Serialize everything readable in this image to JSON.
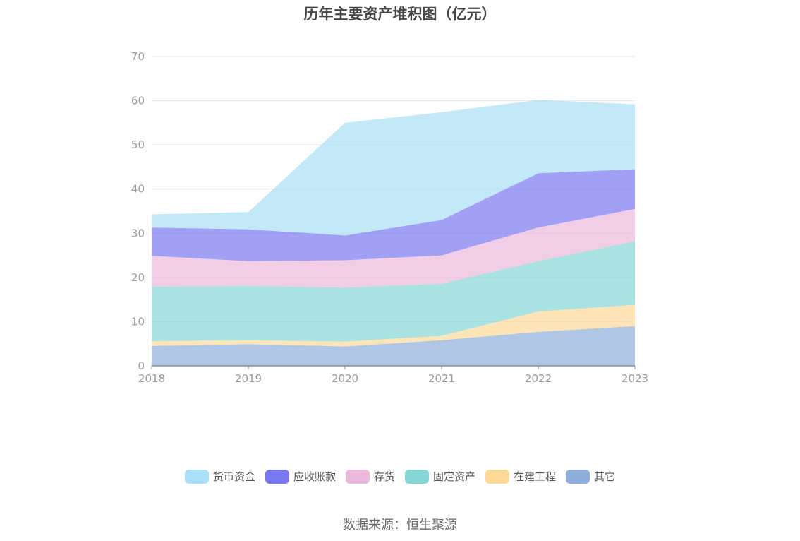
{
  "chart_data": {
    "type": "area",
    "stacked": true,
    "title": "历年主要资产堆积图（亿元）",
    "x": [
      "2018",
      "2019",
      "2020",
      "2021",
      "2022",
      "2023"
    ],
    "ylim": [
      0,
      70
    ],
    "yticks": [
      0,
      10,
      20,
      30,
      40,
      50,
      60,
      70
    ],
    "grid": true,
    "legend_position": "bottom",
    "series": [
      {
        "name": "其它",
        "color": "#8faedb",
        "values": [
          4.5,
          4.9,
          4.4,
          5.8,
          7.7,
          9.0
        ]
      },
      {
        "name": "在建工程",
        "color": "#fdd998",
        "values": [
          1.1,
          0.9,
          1.1,
          1.0,
          4.6,
          4.8
        ]
      },
      {
        "name": "固定资产",
        "color": "#86d6d6",
        "values": [
          12.3,
          12.3,
          12.2,
          11.8,
          11.4,
          14.4
        ]
      },
      {
        "name": "存货",
        "color": "#ebb9dc",
        "values": [
          7.0,
          5.6,
          6.2,
          6.4,
          7.6,
          7.3
        ]
      },
      {
        "name": "应收账款",
        "color": "#7a78f0",
        "values": [
          6.4,
          7.2,
          5.6,
          8.0,
          12.3,
          9.0
        ]
      },
      {
        "name": "货币资金",
        "color": "#a9e0f7",
        "values": [
          3.0,
          3.9,
          25.5,
          24.4,
          16.6,
          14.7
        ]
      }
    ]
  },
  "legend_order": [
    "货币资金",
    "应收账款",
    "存货",
    "固定资产",
    "在建工程",
    "其它"
  ],
  "source": "数据来源：恒生聚源"
}
